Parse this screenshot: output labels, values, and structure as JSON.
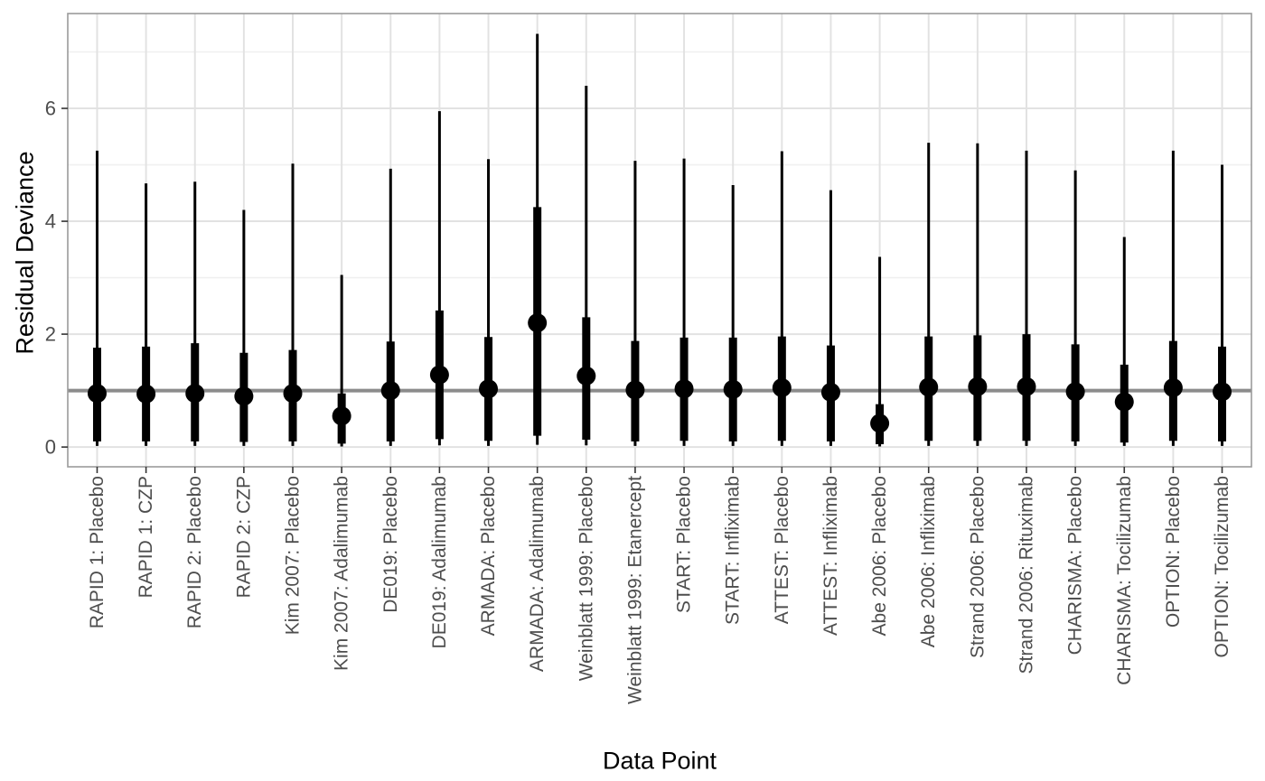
{
  "chart_data": {
    "type": "scatter",
    "subtype": "pointrange-interval-plot",
    "title": "",
    "xlabel": "Data Point",
    "ylabel": "Residual Deviance",
    "ylim": [
      -0.35,
      7.68
    ],
    "y_major_ticks": [
      0,
      2,
      4,
      6
    ],
    "y_minor_gridlines": [
      1,
      3,
      5,
      7
    ],
    "grid": "on",
    "legend_position": "none",
    "reference_line_y": 1,
    "points": [
      {
        "label": "RAPID 1: Placebo",
        "median": 0.95,
        "interval_thick": [
          0.1,
          1.76
        ],
        "interval_thin": [
          0.02,
          5.25
        ]
      },
      {
        "label": "RAPID 1: CZP",
        "median": 0.94,
        "interval_thick": [
          0.1,
          1.78
        ],
        "interval_thin": [
          0.02,
          4.67
        ]
      },
      {
        "label": "RAPID 2: Placebo",
        "median": 0.95,
        "interval_thick": [
          0.1,
          1.84
        ],
        "interval_thin": [
          0.02,
          4.7
        ]
      },
      {
        "label": "RAPID 2: CZP",
        "median": 0.9,
        "interval_thick": [
          0.09,
          1.67
        ],
        "interval_thin": [
          0.02,
          4.2
        ]
      },
      {
        "label": "Kim 2007: Placebo",
        "median": 0.95,
        "interval_thick": [
          0.1,
          1.72
        ],
        "interval_thin": [
          0.02,
          5.02
        ]
      },
      {
        "label": "Kim 2007: Adalimumab",
        "median": 0.55,
        "interval_thick": [
          0.06,
          0.95
        ],
        "interval_thin": [
          0.01,
          3.05
        ]
      },
      {
        "label": "DE019: Placebo",
        "median": 1.0,
        "interval_thick": [
          0.1,
          1.87
        ],
        "interval_thin": [
          0.02,
          4.93
        ]
      },
      {
        "label": "DE019: Adalimumab",
        "median": 1.28,
        "interval_thick": [
          0.14,
          2.42
        ],
        "interval_thin": [
          0.03,
          5.95
        ]
      },
      {
        "label": "ARMADA: Placebo",
        "median": 1.03,
        "interval_thick": [
          0.11,
          1.95
        ],
        "interval_thin": [
          0.02,
          5.1
        ]
      },
      {
        "label": "ARMADA: Adalimumab",
        "median": 2.2,
        "interval_thick": [
          0.2,
          4.25
        ],
        "interval_thin": [
          0.04,
          7.32
        ]
      },
      {
        "label": "Weinblatt 1999: Placebo",
        "median": 1.26,
        "interval_thick": [
          0.13,
          2.3
        ],
        "interval_thin": [
          0.03,
          6.4
        ]
      },
      {
        "label": "Weinblatt 1999: Etanercept",
        "median": 1.01,
        "interval_thick": [
          0.1,
          1.88
        ],
        "interval_thin": [
          0.02,
          5.07
        ]
      },
      {
        "label": "START: Placebo",
        "median": 1.03,
        "interval_thick": [
          0.11,
          1.94
        ],
        "interval_thin": [
          0.02,
          5.11
        ]
      },
      {
        "label": "START: Infliximab",
        "median": 1.02,
        "interval_thick": [
          0.1,
          1.94
        ],
        "interval_thin": [
          0.02,
          4.64
        ]
      },
      {
        "label": "ATTEST: Placebo",
        "median": 1.05,
        "interval_thick": [
          0.11,
          1.96
        ],
        "interval_thin": [
          0.02,
          5.24
        ]
      },
      {
        "label": "ATTEST: Infliximab",
        "median": 0.97,
        "interval_thick": [
          0.1,
          1.8
        ],
        "interval_thin": [
          0.02,
          4.55
        ]
      },
      {
        "label": "Abe 2006: Placebo",
        "median": 0.42,
        "interval_thick": [
          0.05,
          0.76
        ],
        "interval_thin": [
          0.01,
          3.37
        ]
      },
      {
        "label": "Abe 2006: Infliximab",
        "median": 1.06,
        "interval_thick": [
          0.11,
          1.96
        ],
        "interval_thin": [
          0.02,
          5.39
        ]
      },
      {
        "label": "Strand 2006: Placebo",
        "median": 1.07,
        "interval_thick": [
          0.11,
          1.98
        ],
        "interval_thin": [
          0.02,
          5.38
        ]
      },
      {
        "label": "Strand 2006: Rituximab",
        "median": 1.07,
        "interval_thick": [
          0.11,
          2.0
        ],
        "interval_thin": [
          0.02,
          5.25
        ]
      },
      {
        "label": "CHARISMA: Placebo",
        "median": 0.98,
        "interval_thick": [
          0.1,
          1.82
        ],
        "interval_thin": [
          0.02,
          4.9
        ]
      },
      {
        "label": "CHARISMA: Tocilizumab",
        "median": 0.8,
        "interval_thick": [
          0.08,
          1.46
        ],
        "interval_thin": [
          0.02,
          3.72
        ]
      },
      {
        "label": "OPTION: Placebo",
        "median": 1.05,
        "interval_thick": [
          0.11,
          1.88
        ],
        "interval_thin": [
          0.02,
          5.25
        ]
      },
      {
        "label": "OPTION: Tocilizumab",
        "median": 0.98,
        "interval_thick": [
          0.1,
          1.78
        ],
        "interval_thin": [
          0.02,
          5.0
        ]
      }
    ],
    "colors": {
      "mark": "#000000",
      "reference_line": "#8c8c8c",
      "grid_major": "#e2e2e2",
      "grid_minor": "#f0f0f0",
      "panel_border": "#9b9b9b",
      "tick_mark": "#333333",
      "tick_label": "#4d4d4d",
      "axis_title": "#000000",
      "panel_background": "#ffffff"
    }
  }
}
